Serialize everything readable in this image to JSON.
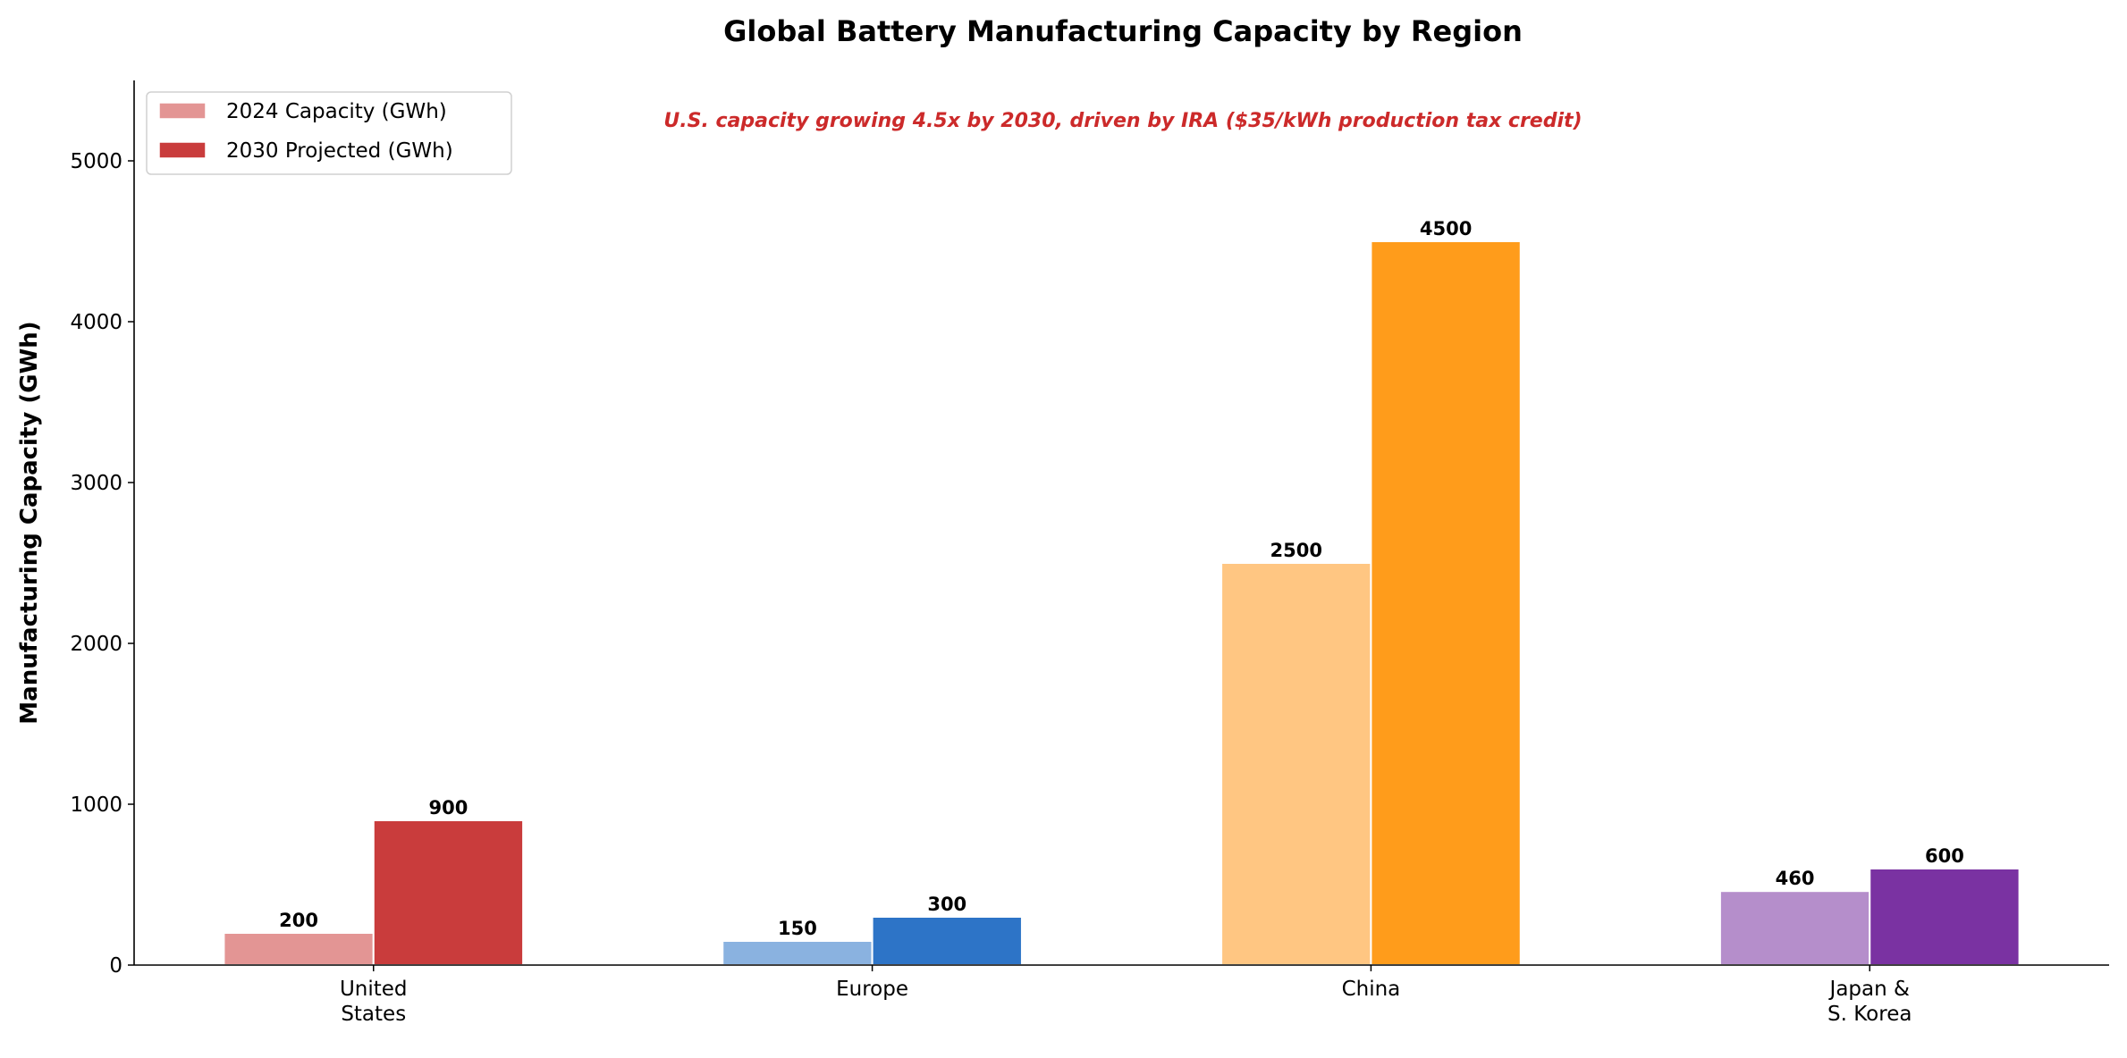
{
  "chart_data": {
    "type": "bar",
    "title": "Global Battery Manufacturing Capacity by Region",
    "annotation": "U.S. capacity growing 4.5x by 2030, driven by IRA ($35/kWh production tax credit)",
    "annotation_color": "#cc2a2a",
    "xlabel": "",
    "ylabel": "Manufacturing Capacity (GWh)",
    "ylim": [
      0,
      5500
    ],
    "yticks": [
      0,
      1000,
      2000,
      3000,
      4000,
      5000
    ],
    "grid": false,
    "legend_placement": "top-left",
    "categories": [
      "United\nStates",
      "Europe",
      "China",
      "Japan &\nS. Korea"
    ],
    "series": [
      {
        "name": "2024 Capacity (GWh)",
        "values": [
          200,
          150,
          2500,
          460
        ],
        "colors": [
          "#e39594",
          "#8ab2e0",
          "#ffc682",
          "#b58ecb"
        ]
      },
      {
        "name": "2030 Projected (GWh)",
        "values": [
          900,
          300,
          4500,
          600
        ],
        "colors": [
          "#c93c3c",
          "#2d74c7",
          "#ff9c1b",
          "#7a32a2"
        ]
      }
    ]
  }
}
